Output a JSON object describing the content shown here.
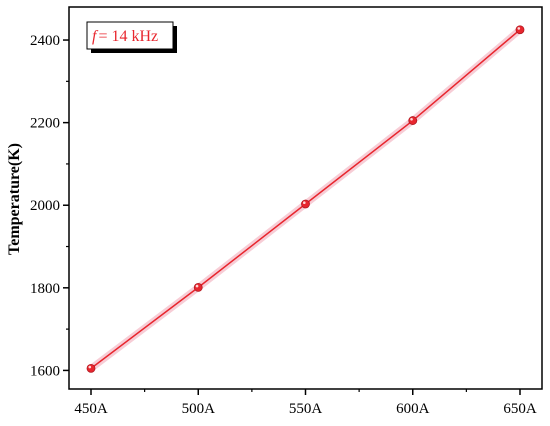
{
  "chart_data": {
    "type": "line",
    "categories": [
      "450A",
      "500A",
      "550A",
      "600A",
      "650A"
    ],
    "series": [
      {
        "values": [
          1605,
          1801,
          2003,
          2205,
          2425
        ]
      }
    ],
    "xlabel": "",
    "ylabel": "Temperature(K)",
    "ylim": [
      1555,
      2480
    ],
    "yticks": [
      1600,
      1800,
      2000,
      2200,
      2400
    ],
    "grid": false,
    "legend": {
      "placement": "top-left",
      "symbol": "f",
      "text": "= 14 kHz"
    },
    "colors": {
      "line": "#e8262e",
      "marker": "#e8262e",
      "band": "#f4b8c4"
    }
  }
}
